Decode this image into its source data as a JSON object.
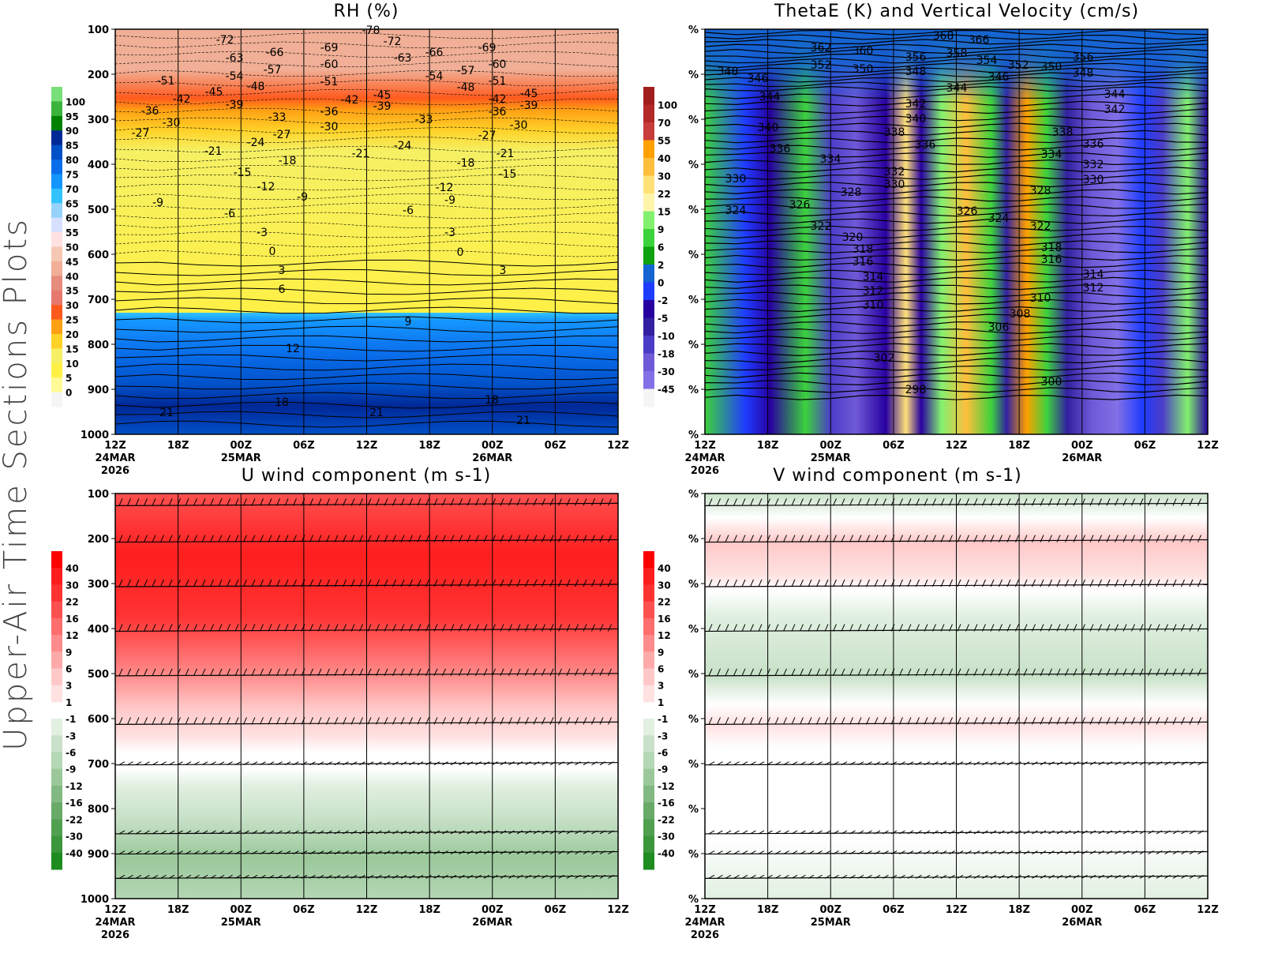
{
  "side_label": "Upper-Air Time Sections Plots",
  "time_axis": {
    "ticks": [
      "12Z",
      "18Z",
      "00Z",
      "06Z",
      "12Z",
      "18Z",
      "00Z",
      "06Z",
      "12Z"
    ],
    "dates": [
      "24MAR",
      "25MAR",
      "26MAR"
    ],
    "year": "2026"
  },
  "chart_data": [
    {
      "type": "heatmap",
      "title": "RH (%)",
      "y_ticks": [
        "100",
        "200",
        "300",
        "400",
        "500",
        "600",
        "700",
        "800",
        "900",
        "1000"
      ],
      "ylim": [
        1000,
        100
      ],
      "colorbar": [
        "100",
        "95",
        "90",
        "85",
        "80",
        "75",
        "70",
        "65",
        "60",
        "55",
        "50",
        "45",
        "40",
        "35",
        "30",
        "25",
        "20",
        "15",
        "10",
        "5",
        "0"
      ],
      "colorbar_colors": [
        "#78e078",
        "#3cb43c",
        "#008200",
        "#002896",
        "#0050c8",
        "#0a6eeb",
        "#1496ff",
        "#32c3ff",
        "#96d2fa",
        "#d7e1ff",
        "#ffe1e1",
        "#f5c8b4",
        "#f0af96",
        "#e68c7d",
        "#e6786e",
        "#ff5a1e",
        "#ffa014",
        "#ffd228",
        "#f5f064",
        "#fff046",
        "#fffa96",
        "#f5f5f5"
      ],
      "contour_labels": [
        "-78",
        "-72",
        "-63",
        "-66",
        "-57",
        "-51",
        "-54",
        "-48",
        "-45",
        "-42",
        "-39",
        "-36",
        "-30",
        "-27",
        "-33",
        "-27",
        "-24",
        "-21",
        "-18",
        "-15",
        "-12",
        "-9",
        "-9",
        "-6",
        "-3",
        "0",
        "3",
        "6",
        "9",
        "12",
        "18",
        "21",
        "21",
        "-69",
        "-60",
        "-51",
        "-42",
        "-36",
        "-30",
        "-21",
        "-72",
        "-63",
        "-45",
        "-39",
        "-24",
        "-66",
        "-54",
        "-33",
        "-57",
        "-48",
        "-69",
        "-60",
        "-51",
        "-42",
        "-36",
        "-30",
        "-45",
        "-39",
        "-27",
        "-21",
        "-15",
        "-18",
        "-12",
        "-9",
        "-6",
        "-3",
        "0",
        "3",
        "18",
        "21"
      ]
    },
    {
      "type": "heatmap",
      "title": "ThetaE (K) and Vertical Velocity (cm/s)",
      "y_ticks": [
        "%",
        "%",
        "%",
        "%",
        "%",
        "%",
        "%",
        "%",
        "%",
        "%"
      ],
      "colorbar": [
        "100",
        "70",
        "55",
        "40",
        "30",
        "22",
        "15",
        "9",
        "6",
        "2",
        "0",
        "-2",
        "-5",
        "-10",
        "-18",
        "-30",
        "-45"
      ],
      "colorbar_colors": [
        "#a01e1e",
        "#b42828",
        "#c83c3c",
        "#ffa000",
        "#ffbe3c",
        "#ffe178",
        "#fff5aa",
        "#82f06e",
        "#3cd23c",
        "#0fa00f",
        "#1464d2",
        "#1e3cff",
        "#2800a0",
        "#3220a0",
        "#4b3cc8",
        "#6e5ad7",
        "#8270e6",
        "#f5f5f5"
      ],
      "contour_labels": [
        "368",
        "366",
        "362",
        "360",
        "356",
        "358",
        "354",
        "352",
        "350",
        "356",
        "348",
        "352",
        "350",
        "348",
        "346",
        "346",
        "348",
        "344",
        "344",
        "344",
        "342",
        "342",
        "340",
        "340",
        "338",
        "338",
        "336",
        "336",
        "336",
        "334",
        "334",
        "332",
        "332",
        "330",
        "330",
        "330",
        "328",
        "328",
        "326",
        "326",
        "324",
        "324",
        "322",
        "322",
        "320",
        "318",
        "318",
        "316",
        "316",
        "314",
        "314",
        "312",
        "312",
        "310",
        "310",
        "308",
        "306",
        "302",
        "300",
        "298"
      ]
    },
    {
      "type": "heatmap",
      "title": "U wind component (m s-1)",
      "y_ticks": [
        "100",
        "200",
        "300",
        "400",
        "500",
        "600",
        "700",
        "800",
        "900",
        "1000"
      ],
      "ylim": [
        1000,
        100
      ],
      "colorbar": [
        "40",
        "30",
        "22",
        "16",
        "12",
        "9",
        "6",
        "3",
        "1",
        "-1",
        "-3",
        "-6",
        "-9",
        "-12",
        "-16",
        "-22",
        "-30",
        "-40"
      ],
      "colorbar_colors": [
        "#ff0000",
        "#ff1e1e",
        "#ff3232",
        "#ff5050",
        "#ff6e6e",
        "#ff8c8c",
        "#ffaaaa",
        "#ffc8c8",
        "#ffe1e1",
        "#ffffff",
        "#e1f0e1",
        "#c8e1c8",
        "#b4d7b4",
        "#9bc89b",
        "#82b982",
        "#69aa69",
        "#50a050",
        "#3c963c",
        "#1e8c1e"
      ]
    },
    {
      "type": "heatmap",
      "title": "V wind component (m s-1)",
      "y_ticks": [
        "%",
        "%",
        "%",
        "%",
        "%",
        "%",
        "%",
        "%",
        "%",
        "%"
      ],
      "colorbar": [
        "40",
        "30",
        "22",
        "16",
        "12",
        "9",
        "6",
        "3",
        "1",
        "-1",
        "-3",
        "-6",
        "-9",
        "-12",
        "-16",
        "-22",
        "-30",
        "-40"
      ],
      "colorbar_colors": [
        "#ff0000",
        "#ff1e1e",
        "#ff3232",
        "#ff5050",
        "#ff6e6e",
        "#ff8c8c",
        "#ffaaaa",
        "#ffc8c8",
        "#ffe1e1",
        "#ffffff",
        "#e1f0e1",
        "#c8e1c8",
        "#b4d7b4",
        "#9bc89b",
        "#82b982",
        "#69aa69",
        "#50a050",
        "#3c963c",
        "#1e8c1e"
      ]
    }
  ]
}
